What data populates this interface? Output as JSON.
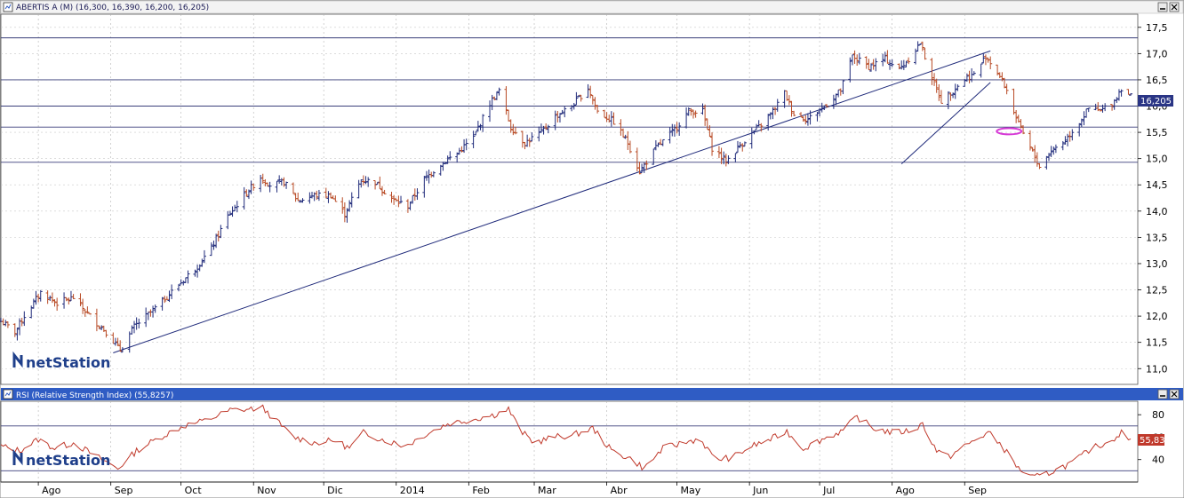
{
  "window": {
    "title": "ABERTIS A (M) (16,300, 16,390, 16,200, 16,205)",
    "last_price_badge": "16,205",
    "watermark": "netStation"
  },
  "rsi_panel": {
    "title": "RSI (Relative Strength Index) (55,8257)",
    "value_badge": "55,83",
    "watermark": "netStation"
  },
  "colors": {
    "up_bar": "#1f2a7a",
    "down_bar": "#b84a25",
    "rsi_line": "#c0392b",
    "trendline": "#1f2a7a",
    "header_bg": "#2f5cc4",
    "marker": "#d63ad6"
  },
  "chart_data": [
    {
      "type": "ohlc",
      "title": "ABERTIS A (M) (16,300, 16,390, 16,200, 16,205)",
      "ylim": [
        10.7,
        17.75
      ],
      "y_ticks": [
        "11,0",
        "11,5",
        "12,0",
        "12,5",
        "13,0",
        "13,5",
        "14,0",
        "14,5",
        "15,0",
        "15,5",
        "16,0",
        "16,5",
        "17,0",
        "17,5"
      ],
      "x_ticks": [
        "Ago",
        "Sep",
        "Oct",
        "Nov",
        "Dic",
        "2014",
        "Feb",
        "Mar",
        "Abr",
        "May",
        "Jun",
        "Jul",
        "Ago",
        "Sep"
      ],
      "horizontal_lines": [
        17.3,
        16.5,
        16.0,
        15.6,
        14.93
      ],
      "trendlines": [
        {
          "from": [
            "2013-09-02",
            11.3
          ],
          "to": [
            "2014-09-12",
            17.05
          ]
        },
        {
          "from": [
            "2014-08-05",
            14.9
          ],
          "to": [
            "2014-09-12",
            16.45
          ]
        }
      ],
      "last_value": 16.205,
      "anchors": [
        [
          "2013-07-16",
          11.9
        ],
        [
          "2013-07-22",
          11.7
        ],
        [
          "2013-07-26",
          12.0
        ],
        [
          "2013-08-02",
          12.45
        ],
        [
          "2013-08-09",
          12.25
        ],
        [
          "2013-08-16",
          12.35
        ],
        [
          "2013-08-23",
          12.0
        ],
        [
          "2013-08-30",
          11.7
        ],
        [
          "2013-09-05",
          11.35
        ],
        [
          "2013-09-11",
          11.8
        ],
        [
          "2013-09-20",
          12.15
        ],
        [
          "2013-09-30",
          12.6
        ],
        [
          "2013-10-08",
          12.95
        ],
        [
          "2013-10-14",
          13.3
        ],
        [
          "2013-10-21",
          13.9
        ],
        [
          "2013-10-28",
          14.3
        ],
        [
          "2013-11-04",
          14.65
        ],
        [
          "2013-11-08",
          14.5
        ],
        [
          "2013-11-14",
          14.55
        ],
        [
          "2013-11-20",
          14.2
        ],
        [
          "2013-11-27",
          14.3
        ],
        [
          "2013-12-04",
          14.3
        ],
        [
          "2013-12-10",
          13.95
        ],
        [
          "2013-12-17",
          14.6
        ],
        [
          "2013-12-23",
          14.55
        ],
        [
          "2013-12-31",
          14.2
        ],
        [
          "2014-01-06",
          14.1
        ],
        [
          "2014-01-13",
          14.6
        ],
        [
          "2014-01-20",
          14.9
        ],
        [
          "2014-01-27",
          15.1
        ],
        [
          "2014-02-03",
          15.4
        ],
        [
          "2014-02-10",
          16.05
        ],
        [
          "2014-02-14",
          16.3
        ],
        [
          "2014-02-19",
          15.6
        ],
        [
          "2014-02-25",
          15.3
        ],
        [
          "2014-03-04",
          15.5
        ],
        [
          "2014-03-10",
          15.8
        ],
        [
          "2014-03-17",
          16.0
        ],
        [
          "2014-03-24",
          16.35
        ],
        [
          "2014-03-28",
          15.9
        ],
        [
          "2014-04-04",
          15.7
        ],
        [
          "2014-04-10",
          15.3
        ],
        [
          "2014-04-15",
          14.75
        ],
        [
          "2014-04-22",
          15.2
        ],
        [
          "2014-04-29",
          15.5
        ],
        [
          "2014-05-06",
          15.9
        ],
        [
          "2014-05-12",
          15.9
        ],
        [
          "2014-05-16",
          15.2
        ],
        [
          "2014-05-22",
          14.95
        ],
        [
          "2014-05-29",
          15.3
        ],
        [
          "2014-06-05",
          15.6
        ],
        [
          "2014-06-11",
          15.9
        ],
        [
          "2014-06-16",
          16.25
        ],
        [
          "2014-06-20",
          15.85
        ],
        [
          "2014-06-26",
          15.75
        ],
        [
          "2014-07-03",
          16.0
        ],
        [
          "2014-07-10",
          16.3
        ],
        [
          "2014-07-15",
          16.95
        ],
        [
          "2014-07-22",
          16.75
        ],
        [
          "2014-07-29",
          16.9
        ],
        [
          "2014-08-04",
          16.7
        ],
        [
          "2014-08-08",
          16.9
        ],
        [
          "2014-08-13",
          17.2
        ],
        [
          "2014-08-18",
          16.55
        ],
        [
          "2014-08-22",
          16.1
        ],
        [
          "2014-08-27",
          16.3
        ],
        [
          "2014-09-02",
          16.55
        ],
        [
          "2014-09-05",
          16.6
        ],
        [
          "2014-09-10",
          16.95
        ],
        [
          "2014-09-15",
          16.65
        ],
        [
          "2014-09-19",
          16.3
        ],
        [
          "2014-09-24",
          15.65
        ],
        [
          "2014-09-29",
          15.2
        ],
        [
          "2014-10-03",
          14.85
        ],
        [
          "2014-10-08",
          15.15
        ],
        [
          "2014-10-14",
          15.35
        ],
        [
          "2014-10-20",
          15.7
        ],
        [
          "2014-10-24",
          15.95
        ],
        [
          "2014-10-29",
          15.9
        ],
        [
          "2014-11-04",
          16.1
        ],
        [
          "2014-11-07",
          16.35
        ],
        [
          "2014-11-11",
          16.205
        ]
      ],
      "marker_ellipse": {
        "date": "2014-09-20",
        "value": 15.52
      }
    },
    {
      "type": "line",
      "title": "RSI (Relative Strength Index) (55,8257)",
      "ylim": [
        20,
        92
      ],
      "y_ticks": [
        "40",
        "60",
        "80"
      ],
      "horizontal_lines": [
        70,
        30
      ],
      "last_value": 55.83,
      "anchors": [
        [
          "2013-07-16",
          52
        ],
        [
          "2013-07-24",
          48
        ],
        [
          "2013-08-01",
          58
        ],
        [
          "2013-08-08",
          50
        ],
        [
          "2013-08-16",
          55
        ],
        [
          "2013-08-24",
          45
        ],
        [
          "2013-09-04",
          32
        ],
        [
          "2013-09-12",
          48
        ],
        [
          "2013-09-22",
          60
        ],
        [
          "2013-10-02",
          70
        ],
        [
          "2013-10-12",
          75
        ],
        [
          "2013-10-22",
          84
        ],
        [
          "2013-10-30",
          85
        ],
        [
          "2013-11-05",
          86
        ],
        [
          "2013-11-11",
          74
        ],
        [
          "2013-11-18",
          60
        ],
        [
          "2013-11-27",
          55
        ],
        [
          "2013-12-06",
          57
        ],
        [
          "2013-12-12",
          50
        ],
        [
          "2013-12-18",
          64
        ],
        [
          "2013-12-26",
          58
        ],
        [
          "2014-01-05",
          52
        ],
        [
          "2014-01-13",
          62
        ],
        [
          "2014-01-23",
          72
        ],
        [
          "2014-02-03",
          76
        ],
        [
          "2014-02-12",
          80
        ],
        [
          "2014-02-18",
          85
        ],
        [
          "2014-02-23",
          66
        ],
        [
          "2014-03-01",
          55
        ],
        [
          "2014-03-09",
          60
        ],
        [
          "2014-03-18",
          62
        ],
        [
          "2014-03-26",
          68
        ],
        [
          "2014-04-03",
          48
        ],
        [
          "2014-04-12",
          40
        ],
        [
          "2014-04-17",
          32
        ],
        [
          "2014-04-25",
          50
        ],
        [
          "2014-05-04",
          55
        ],
        [
          "2014-05-11",
          59
        ],
        [
          "2014-05-17",
          40
        ],
        [
          "2014-05-25",
          42
        ],
        [
          "2014-06-02",
          52
        ],
        [
          "2014-06-10",
          58
        ],
        [
          "2014-06-17",
          65
        ],
        [
          "2014-06-24",
          50
        ],
        [
          "2014-07-02",
          58
        ],
        [
          "2014-07-11",
          66
        ],
        [
          "2014-07-17",
          78
        ],
        [
          "2014-07-24",
          68
        ],
        [
          "2014-08-01",
          64
        ],
        [
          "2014-08-10",
          66
        ],
        [
          "2014-08-14",
          72
        ],
        [
          "2014-08-20",
          48
        ],
        [
          "2014-08-25",
          42
        ],
        [
          "2014-09-01",
          52
        ],
        [
          "2014-09-06",
          58
        ],
        [
          "2014-09-11",
          64
        ],
        [
          "2014-09-17",
          52
        ],
        [
          "2014-09-24",
          32
        ],
        [
          "2014-09-30",
          24
        ],
        [
          "2014-10-05",
          26
        ],
        [
          "2014-10-11",
          32
        ],
        [
          "2014-10-18",
          38
        ],
        [
          "2014-10-25",
          50
        ],
        [
          "2014-11-01",
          55
        ],
        [
          "2014-11-07",
          64
        ],
        [
          "2014-11-11",
          56
        ]
      ]
    }
  ]
}
